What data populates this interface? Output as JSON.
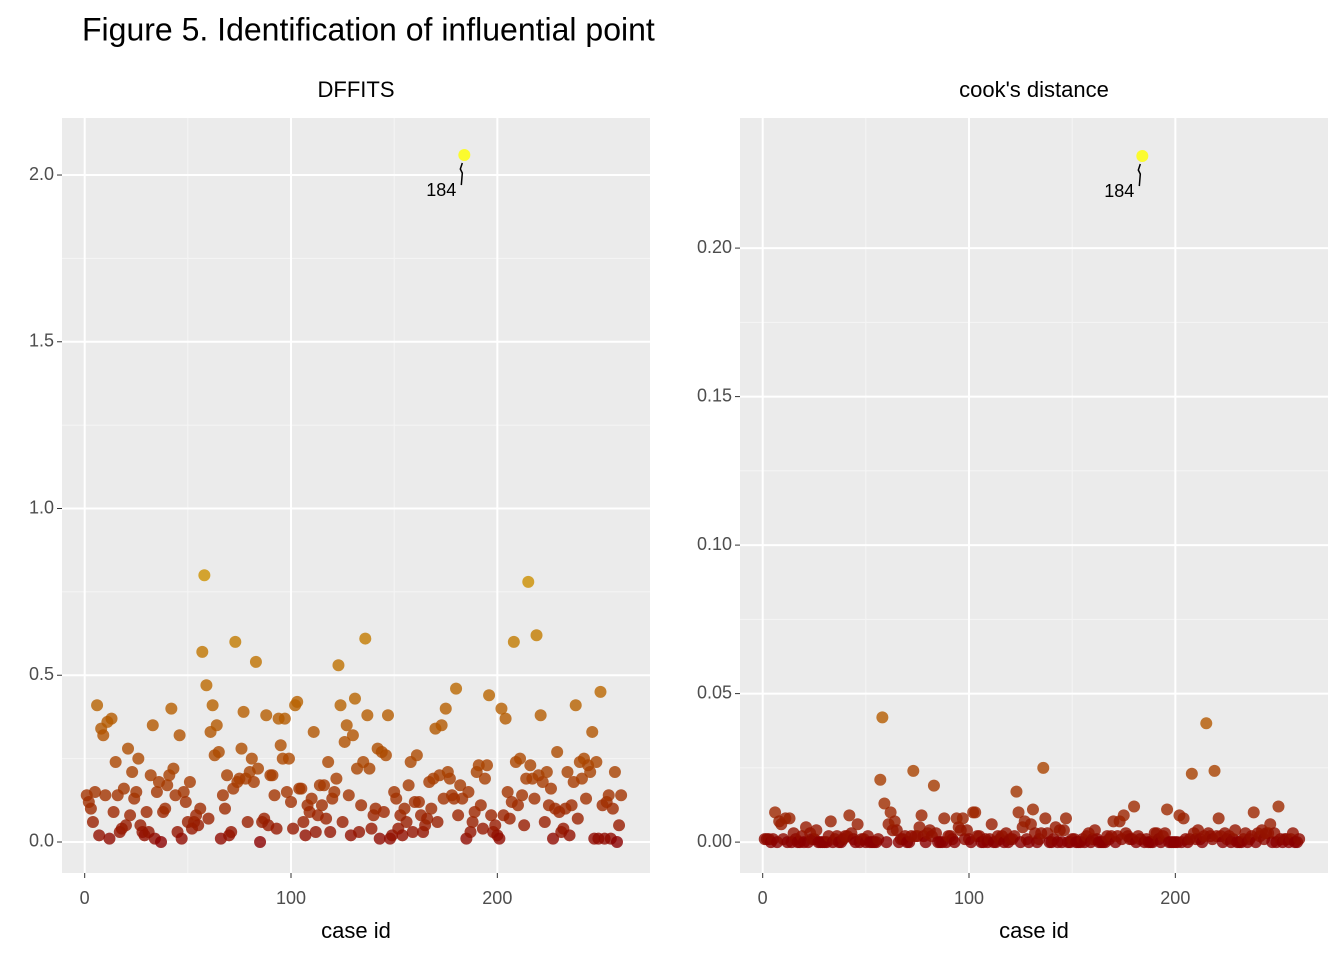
{
  "title": "Figure 5. Identification of influential point",
  "chart_data": [
    {
      "type": "scatter",
      "title": "DFFITS",
      "xlabel": "case id",
      "xlim": [
        -11,
        274
      ],
      "ylim": [
        -0.093,
        2.171
      ],
      "xticks": [
        0,
        100,
        200
      ],
      "yticks": [
        {
          "value": 0,
          "label": "0.0"
        },
        0.5,
        {
          "value": 1,
          "label": "1.0"
        },
        1.5,
        {
          "value": 2,
          "label": "2.0"
        }
      ],
      "grid": true,
      "color_low": "#8b0000",
      "color_high": "#ffff00",
      "annotations": [
        {
          "x": 184,
          "label": "184"
        }
      ],
      "x": [
        1,
        2,
        3,
        4,
        5,
        6,
        7,
        8,
        9,
        10,
        11,
        12,
        13,
        14,
        15,
        16,
        17,
        18,
        19,
        20,
        21,
        22,
        23,
        24,
        25,
        26,
        27,
        28,
        29,
        30,
        31,
        32,
        33,
        34,
        35,
        36,
        37,
        38,
        39,
        40,
        41,
        42,
        43,
        44,
        45,
        46,
        47,
        48,
        49,
        50,
        51,
        52,
        53,
        54,
        55,
        56,
        57,
        58,
        59,
        60,
        61,
        62,
        63,
        64,
        65,
        66,
        67,
        68,
        69,
        70,
        71,
        72,
        73,
        74,
        75,
        76,
        77,
        78,
        79,
        80,
        81,
        82,
        83,
        84,
        85,
        86,
        87,
        88,
        89,
        90,
        91,
        92,
        93,
        94,
        95,
        96,
        97,
        98,
        99,
        100,
        101,
        102,
        103,
        104,
        105,
        106,
        107,
        108,
        109,
        110,
        111,
        112,
        113,
        114,
        115,
        116,
        117,
        118,
        119,
        120,
        121,
        122,
        123,
        124,
        125,
        126,
        127,
        128,
        129,
        130,
        131,
        132,
        133,
        134,
        135,
        136,
        137,
        138,
        139,
        140,
        141,
        142,
        143,
        144,
        145,
        146,
        147,
        148,
        149,
        150,
        151,
        152,
        153,
        154,
        155,
        156,
        157,
        158,
        159,
        160,
        161,
        162,
        163,
        164,
        165,
        166,
        167,
        168,
        169,
        170,
        171,
        172,
        173,
        174,
        175,
        176,
        177,
        178,
        179,
        180,
        181,
        182,
        183,
        184,
        185,
        186,
        187,
        188,
        189,
        190,
        191,
        192,
        193,
        194,
        195,
        196,
        197,
        198,
        199,
        200,
        201,
        202,
        203,
        204,
        205,
        206,
        207,
        208,
        209,
        210,
        211,
        212,
        213,
        214,
        215,
        216,
        217,
        218,
        219,
        220,
        221,
        222,
        223,
        224,
        225,
        226,
        227,
        228,
        229,
        230,
        231,
        232,
        233,
        234,
        235,
        236,
        237,
        238,
        239,
        240,
        241,
        242,
        243,
        244,
        245,
        246,
        247,
        248,
        249,
        250,
        251,
        252,
        253,
        254,
        255,
        256,
        257,
        258,
        259,
        260
      ],
      "values": [
        0.14,
        0.12,
        0.1,
        0.06,
        0.15,
        0.41,
        0.02,
        0.34,
        0.32,
        0.14,
        0.36,
        0.01,
        0.37,
        0.09,
        0.24,
        0.14,
        0.03,
        0.04,
        0.16,
        0.05,
        0.28,
        0.08,
        0.21,
        0.13,
        0.15,
        0.25,
        0.05,
        0.03,
        0.02,
        0.09,
        0.03,
        0.2,
        0.35,
        0.01,
        0.15,
        0.18,
        0.0,
        0.09,
        0.1,
        0.17,
        0.2,
        0.4,
        0.22,
        0.14,
        0.03,
        0.32,
        0.01,
        0.15,
        0.12,
        0.06,
        0.18,
        0.04,
        0.06,
        0.08,
        0.05,
        0.1,
        0.57,
        0.8,
        0.47,
        0.07,
        0.33,
        0.41,
        0.26,
        0.35,
        0.27,
        0.01,
        0.14,
        0.1,
        0.2,
        0.02,
        0.03,
        0.16,
        0.6,
        0.18,
        0.19,
        0.28,
        0.39,
        0.19,
        0.06,
        0.21,
        0.25,
        0.18,
        0.54,
        0.22,
        0.0,
        0.06,
        0.07,
        0.38,
        0.05,
        0.2,
        0.2,
        0.14,
        0.04,
        0.37,
        0.29,
        0.25,
        0.37,
        0.15,
        0.25,
        0.12,
        0.04,
        0.41,
        0.42,
        0.16,
        0.16,
        0.06,
        0.02,
        0.11,
        0.09,
        0.13,
        0.33,
        0.03,
        0.08,
        0.17,
        0.11,
        0.17,
        0.07,
        0.24,
        0.03,
        0.13,
        0.15,
        0.19,
        0.53,
        0.41,
        0.06,
        0.3,
        0.35,
        0.14,
        0.02,
        0.32,
        0.43,
        0.22,
        0.03,
        0.11,
        0.24,
        0.61,
        0.38,
        0.22,
        0.04,
        0.08,
        0.1,
        0.28,
        0.01,
        0.27,
        0.09,
        0.26,
        0.38,
        0.01,
        0.02,
        0.15,
        0.13,
        0.04,
        0.08,
        0.02,
        0.1,
        0.06,
        0.17,
        0.24,
        0.03,
        0.12,
        0.26,
        0.12,
        0.08,
        0.03,
        0.05,
        0.07,
        0.18,
        0.1,
        0.19,
        0.34,
        0.06,
        0.2,
        0.35,
        0.13,
        0.4,
        0.21,
        0.19,
        0.14,
        0.13,
        0.46,
        0.08,
        0.17,
        0.13,
        2.06,
        0.01,
        0.15,
        0.03,
        0.06,
        0.09,
        0.21,
        0.23,
        0.11,
        0.04,
        0.19,
        0.23,
        0.44,
        0.08,
        0.03,
        0.05,
        0.02,
        0.01,
        0.4,
        0.08,
        0.37,
        0.15,
        0.07,
        0.12,
        0.6,
        0.24,
        0.11,
        0.25,
        0.14,
        0.05,
        0.19,
        0.78,
        0.23,
        0.19,
        0.13,
        0.62,
        0.2,
        0.38,
        0.18,
        0.06,
        0.21,
        0.11,
        0.16,
        0.01,
        0.1,
        0.27,
        0.09,
        0.03,
        0.04,
        0.1,
        0.21,
        0.02,
        0.11,
        0.18,
        0.41,
        0.07,
        0.24,
        0.19,
        0.25,
        0.13,
        0.23,
        0.21,
        0.33,
        0.01,
        0.24,
        0.01,
        0.45,
        0.11,
        0.01,
        0.12,
        0.14,
        0.01,
        0.1,
        0.21,
        0.0,
        0.05,
        0.14
      ]
    },
    {
      "type": "scatter",
      "title": "cook's distance",
      "xlabel": "case id",
      "xlim": [
        -11,
        274
      ],
      "ylim": [
        -0.0104,
        0.2438
      ],
      "xticks": [
        0,
        100,
        200
      ],
      "yticks": [
        {
          "value": 0,
          "label": "0.00"
        },
        0.05,
        {
          "value": 0.1,
          "label": "0.10"
        },
        0.15,
        {
          "value": 0.2,
          "label": "0.20"
        }
      ],
      "grid": true,
      "color_low": "#8b0000",
      "color_high": "#ffff00",
      "annotations": [
        {
          "x": 184,
          "label": "184"
        }
      ],
      "x": [
        1,
        2,
        3,
        4,
        5,
        6,
        7,
        8,
        9,
        10,
        11,
        12,
        13,
        14,
        15,
        16,
        17,
        18,
        19,
        20,
        21,
        22,
        23,
        24,
        25,
        26,
        27,
        28,
        29,
        30,
        31,
        32,
        33,
        34,
        35,
        36,
        37,
        38,
        39,
        40,
        41,
        42,
        43,
        44,
        45,
        46,
        47,
        48,
        49,
        50,
        51,
        52,
        53,
        54,
        55,
        56,
        57,
        58,
        59,
        60,
        61,
        62,
        63,
        64,
        65,
        66,
        67,
        68,
        69,
        70,
        71,
        72,
        73,
        74,
        75,
        76,
        77,
        78,
        79,
        80,
        81,
        82,
        83,
        84,
        85,
        86,
        87,
        88,
        89,
        90,
        91,
        92,
        93,
        94,
        95,
        96,
        97,
        98,
        99,
        100,
        101,
        102,
        103,
        104,
        105,
        106,
        107,
        108,
        109,
        110,
        111,
        112,
        113,
        114,
        115,
        116,
        117,
        118,
        119,
        120,
        121,
        122,
        123,
        124,
        125,
        126,
        127,
        128,
        129,
        130,
        131,
        132,
        133,
        134,
        135,
        136,
        137,
        138,
        139,
        140,
        141,
        142,
        143,
        144,
        145,
        146,
        147,
        148,
        149,
        150,
        151,
        152,
        153,
        154,
        155,
        156,
        157,
        158,
        159,
        160,
        161,
        162,
        163,
        164,
        165,
        166,
        167,
        168,
        169,
        170,
        171,
        172,
        173,
        174,
        175,
        176,
        177,
        178,
        179,
        180,
        181,
        182,
        183,
        184,
        185,
        186,
        187,
        188,
        189,
        190,
        191,
        192,
        193,
        194,
        195,
        196,
        197,
        198,
        199,
        200,
        201,
        202,
        203,
        204,
        205,
        206,
        207,
        208,
        209,
        210,
        211,
        212,
        213,
        214,
        215,
        216,
        217,
        218,
        219,
        220,
        221,
        222,
        223,
        224,
        225,
        226,
        227,
        228,
        229,
        230,
        231,
        232,
        233,
        234,
        235,
        236,
        237,
        238,
        239,
        240,
        241,
        242,
        243,
        244,
        245,
        246,
        247,
        248,
        249,
        250,
        251,
        252,
        253,
        254,
        255,
        256,
        257,
        258,
        259,
        260
      ],
      "values": [
        0.001,
        0.001,
        0.001,
        0,
        0.001,
        0.01,
        0,
        0.007,
        0.006,
        0.001,
        0.008,
        0,
        0.008,
        0,
        0.003,
        0.001,
        0,
        0,
        0.002,
        0,
        0.005,
        0,
        0.003,
        0.001,
        0.001,
        0.004,
        0,
        0,
        0,
        0,
        0,
        0.002,
        0.007,
        0,
        0.001,
        0.002,
        0,
        0,
        0.001,
        0.002,
        0.002,
        0.009,
        0.003,
        0.001,
        0,
        0.006,
        0,
        0.001,
        0.001,
        0,
        0.002,
        0,
        0,
        0,
        0,
        0.001,
        0.021,
        0.042,
        0.013,
        0,
        0.006,
        0.01,
        0.004,
        0.007,
        0.004,
        0,
        0.001,
        0.001,
        0.002,
        0,
        0,
        0.002,
        0.024,
        0.002,
        0.002,
        0.005,
        0.009,
        0.002,
        0,
        0.003,
        0.004,
        0.002,
        0.019,
        0.003,
        0,
        0,
        0,
        0.008,
        0,
        0.002,
        0.002,
        0.001,
        0,
        0.008,
        0.005,
        0.004,
        0.008,
        0.001,
        0.004,
        0.001,
        0,
        0.01,
        0.01,
        0.002,
        0.002,
        0,
        0,
        0.001,
        0,
        0.001,
        0.006,
        0,
        0,
        0.002,
        0.001,
        0.002,
        0,
        0.003,
        0,
        0.001,
        0.001,
        0.002,
        0.017,
        0.01,
        0,
        0.005,
        0.007,
        0.001,
        0,
        0.006,
        0.011,
        0.003,
        0,
        0.001,
        0.003,
        0.025,
        0.008,
        0.003,
        0,
        0,
        0.001,
        0.005,
        0,
        0.004,
        0,
        0.004,
        0.008,
        0,
        0,
        0.001,
        0.001,
        0,
        0,
        0,
        0.001,
        0,
        0.002,
        0.003,
        0,
        0.001,
        0.004,
        0.001,
        0,
        0,
        0,
        0,
        0.002,
        0.001,
        0.002,
        0.007,
        0,
        0.002,
        0.007,
        0.001,
        0.009,
        0.003,
        0.002,
        0.001,
        0.001,
        0.012,
        0,
        0.002,
        0.001,
        0.231,
        0,
        0.001,
        0,
        0,
        0,
        0.003,
        0.003,
        0.001,
        0,
        0.002,
        0.003,
        0.011,
        0,
        0,
        0,
        0,
        0,
        0.009,
        0,
        0.008,
        0.001,
        0,
        0.001,
        0.023,
        0.003,
        0.001,
        0.004,
        0.001,
        0,
        0.002,
        0.04,
        0.003,
        0.002,
        0.001,
        0.024,
        0.002,
        0.008,
        0.002,
        0,
        0.003,
        0.001,
        0.002,
        0,
        0.001,
        0.004,
        0,
        0,
        0,
        0.001,
        0.003,
        0,
        0.001,
        0.002,
        0.01,
        0,
        0.003,
        0.002,
        0.004,
        0.001,
        0.003,
        0.003,
        0.006,
        0,
        0.003,
        0,
        0.012,
        0.001,
        0,
        0.001,
        0.001,
        0,
        0.001,
        0.003,
        0,
        0,
        0.001
      ]
    }
  ]
}
